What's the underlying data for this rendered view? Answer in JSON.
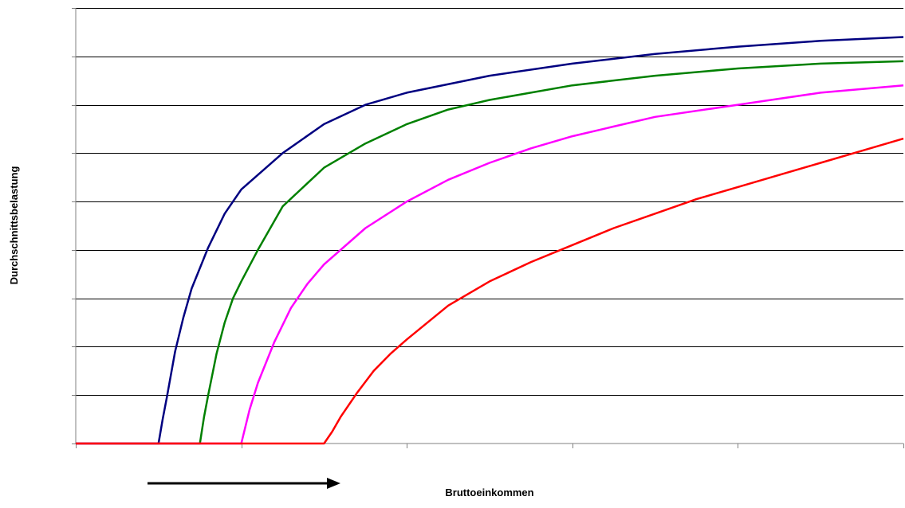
{
  "chart_data": {
    "type": "line",
    "title": "",
    "xlabel": "Bruttoeinkommen",
    "ylabel": "Durchschnittsbelastung",
    "xlim": [
      0,
      100
    ],
    "ylim": [
      0,
      9
    ],
    "x_ticks": [
      0,
      20,
      40,
      60,
      80,
      100
    ],
    "y_ticks": [
      0,
      1,
      2,
      3,
      4,
      5,
      6,
      7,
      8,
      9
    ],
    "grid": "horizontal",
    "legend": "none",
    "arrow": "right",
    "series": [
      {
        "color": "#000080",
        "x": [
          0,
          10,
          10.5,
          11,
          12,
          13,
          14,
          16,
          18,
          20,
          25,
          30,
          35,
          40,
          50,
          60,
          70,
          80,
          90,
          100
        ],
        "y": [
          0,
          0,
          0.5,
          0.95,
          1.9,
          2.6,
          3.2,
          4.05,
          4.75,
          5.25,
          6.0,
          6.6,
          7.0,
          7.25,
          7.6,
          7.85,
          8.05,
          8.2,
          8.32,
          8.4
        ]
      },
      {
        "color": "#008000",
        "x": [
          0,
          15,
          15.5,
          16,
          17,
          18,
          19,
          20,
          22,
          25,
          30,
          35,
          40,
          45,
          50,
          60,
          70,
          80,
          90,
          100
        ],
        "y": [
          0,
          0,
          0.55,
          1.0,
          1.85,
          2.5,
          3.0,
          3.35,
          4.0,
          4.9,
          5.7,
          6.2,
          6.6,
          6.9,
          7.1,
          7.4,
          7.6,
          7.75,
          7.85,
          7.9
        ]
      },
      {
        "color": "#ff00ff",
        "x": [
          0,
          20,
          21,
          22,
          24,
          26,
          28,
          30,
          35,
          40,
          45,
          50,
          55,
          60,
          65,
          70,
          80,
          90,
          100
        ],
        "y": [
          0,
          0,
          0.7,
          1.25,
          2.1,
          2.8,
          3.3,
          3.7,
          4.45,
          5.0,
          5.45,
          5.8,
          6.1,
          6.35,
          6.55,
          6.75,
          7.0,
          7.25,
          7.4
        ]
      },
      {
        "color": "#ff0000",
        "x": [
          0,
          30,
          31,
          32,
          34,
          36,
          38,
          40,
          45,
          50,
          55,
          60,
          65,
          70,
          75,
          80,
          85,
          90,
          95,
          100
        ],
        "y": [
          0,
          0,
          0.25,
          0.55,
          1.05,
          1.5,
          1.85,
          2.15,
          2.85,
          3.35,
          3.75,
          4.1,
          4.45,
          4.75,
          5.05,
          5.3,
          5.55,
          5.8,
          6.05,
          6.3
        ]
      }
    ]
  }
}
